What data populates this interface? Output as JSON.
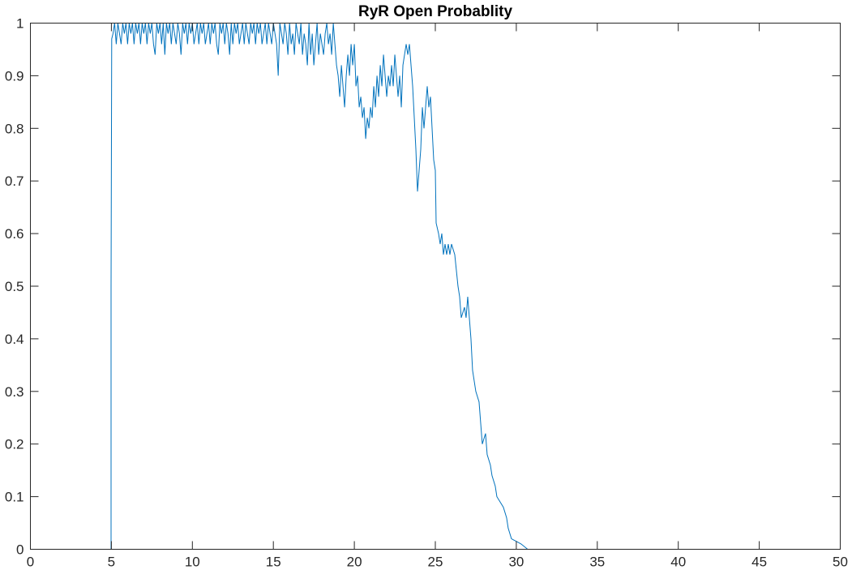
{
  "chart_data": {
    "type": "line",
    "title": "RyR Open Probablity",
    "xlabel": "",
    "ylabel": "",
    "xlim": [
      0,
      50
    ],
    "ylim": [
      0,
      1
    ],
    "xticks": [
      0,
      5,
      10,
      15,
      20,
      25,
      30,
      35,
      40,
      45,
      50
    ],
    "yticks": [
      0,
      0.1,
      0.2,
      0.3,
      0.4,
      0.5,
      0.6,
      0.7,
      0.8,
      0.9,
      1
    ],
    "xtick_labels": [
      "0",
      "5",
      "10",
      "15",
      "20",
      "25",
      "30",
      "35",
      "40",
      "45",
      "50"
    ],
    "ytick_labels": [
      "0",
      "0.1",
      "0.2",
      "0.3",
      "0.4",
      "0.5",
      "0.6",
      "0.7",
      "0.8",
      "0.9",
      "1"
    ],
    "grid": false,
    "box": true,
    "series": [
      {
        "color": "#0072BD",
        "points": [
          [
            0,
            0
          ],
          [
            4.98,
            0
          ],
          [
            4.98,
            0.5
          ],
          [
            5.02,
            0.97
          ],
          [
            5.1,
            0.98
          ],
          [
            5.2,
            1
          ],
          [
            5.3,
            0.96
          ],
          [
            5.4,
            1
          ],
          [
            5.5,
            0.98
          ],
          [
            5.6,
            0.96
          ],
          [
            5.7,
            1
          ],
          [
            5.8,
            0.98
          ],
          [
            5.9,
            1
          ],
          [
            6.0,
            0.96
          ],
          [
            6.1,
            1
          ],
          [
            6.2,
            0.98
          ],
          [
            6.3,
            1
          ],
          [
            6.4,
            0.96
          ],
          [
            6.5,
            1
          ],
          [
            6.6,
            0.98
          ],
          [
            6.7,
            1
          ],
          [
            6.8,
            0.96
          ],
          [
            6.9,
            1
          ],
          [
            7.0,
            0.98
          ],
          [
            7.1,
            1
          ],
          [
            7.2,
            0.96
          ],
          [
            7.3,
            1
          ],
          [
            7.4,
            0.98
          ],
          [
            7.5,
            1
          ],
          [
            7.6,
            0.96
          ],
          [
            7.7,
            0.94
          ],
          [
            7.8,
            1
          ],
          [
            7.9,
            0.98
          ],
          [
            8.0,
            1
          ],
          [
            8.1,
            0.96
          ],
          [
            8.2,
            1
          ],
          [
            8.3,
            0.94
          ],
          [
            8.4,
            1
          ],
          [
            8.5,
            0.98
          ],
          [
            8.6,
            1
          ],
          [
            8.7,
            0.96
          ],
          [
            8.8,
            1
          ],
          [
            8.9,
            0.98
          ],
          [
            9.0,
            0.96
          ],
          [
            9.1,
            1
          ],
          [
            9.2,
            0.98
          ],
          [
            9.3,
            0.94
          ],
          [
            9.4,
            1
          ],
          [
            9.5,
            0.98
          ],
          [
            9.6,
            1
          ],
          [
            9.7,
            0.96
          ],
          [
            9.8,
            1
          ],
          [
            9.9,
            0.98
          ],
          [
            10.0,
            1
          ],
          [
            10.1,
            0.96
          ],
          [
            10.2,
            0.98
          ],
          [
            10.3,
            1
          ],
          [
            10.4,
            0.96
          ],
          [
            10.5,
            1
          ],
          [
            10.6,
            0.98
          ],
          [
            10.7,
            1
          ],
          [
            10.8,
            0.96
          ],
          [
            10.9,
            0.98
          ],
          [
            11.0,
            1
          ],
          [
            11.1,
            0.96
          ],
          [
            11.2,
            1
          ],
          [
            11.3,
            0.98
          ],
          [
            11.4,
            1
          ],
          [
            11.5,
            0.96
          ],
          [
            11.6,
            0.94
          ],
          [
            11.7,
            1
          ],
          [
            11.8,
            0.98
          ],
          [
            11.9,
            1
          ],
          [
            12.0,
            0.96
          ],
          [
            12.1,
            1
          ],
          [
            12.2,
            0.98
          ],
          [
            12.3,
            0.94
          ],
          [
            12.4,
            1
          ],
          [
            12.5,
            0.96
          ],
          [
            12.6,
            1
          ],
          [
            12.7,
            0.98
          ],
          [
            12.8,
            1
          ],
          [
            12.9,
            0.96
          ],
          [
            13.0,
            0.98
          ],
          [
            13.1,
            1
          ],
          [
            13.2,
            0.96
          ],
          [
            13.3,
            1
          ],
          [
            13.4,
            0.98
          ],
          [
            13.5,
            0.96
          ],
          [
            13.6,
            1
          ],
          [
            13.7,
            0.98
          ],
          [
            13.8,
            1
          ],
          [
            13.9,
            0.96
          ],
          [
            14.0,
            1
          ],
          [
            14.1,
            0.98
          ],
          [
            14.2,
            1
          ],
          [
            14.3,
            0.96
          ],
          [
            14.4,
            0.98
          ],
          [
            14.5,
            1
          ],
          [
            14.6,
            0.96
          ],
          [
            14.7,
            1
          ],
          [
            14.8,
            0.98
          ],
          [
            14.9,
            0.96
          ],
          [
            15.0,
            1
          ],
          [
            15.1,
            0.98
          ],
          [
            15.2,
            0.96
          ],
          [
            15.3,
            0.9
          ],
          [
            15.4,
            1
          ],
          [
            15.5,
            0.98
          ],
          [
            15.6,
            0.96
          ],
          [
            15.7,
            1
          ],
          [
            15.8,
            0.98
          ],
          [
            15.9,
            0.94
          ],
          [
            16.0,
            1
          ],
          [
            16.1,
            0.96
          ],
          [
            16.2,
            0.98
          ],
          [
            16.3,
            0.94
          ],
          [
            16.4,
            1
          ],
          [
            16.5,
            0.98
          ],
          [
            16.6,
            0.96
          ],
          [
            16.7,
            1
          ],
          [
            16.8,
            0.94
          ],
          [
            16.9,
            0.98
          ],
          [
            17.0,
            0.96
          ],
          [
            17.1,
            0.92
          ],
          [
            17.2,
            1
          ],
          [
            17.3,
            0.94
          ],
          [
            17.4,
            0.98
          ],
          [
            17.5,
            0.92
          ],
          [
            17.6,
            0.96
          ],
          [
            17.7,
            1
          ],
          [
            17.8,
            0.94
          ],
          [
            17.9,
            0.98
          ],
          [
            18.0,
            0.96
          ],
          [
            18.1,
            0.94
          ],
          [
            18.2,
            0.98
          ],
          [
            18.3,
            1
          ],
          [
            18.4,
            0.96
          ],
          [
            18.5,
            0.98
          ],
          [
            18.6,
            0.94
          ],
          [
            18.7,
            1
          ],
          [
            18.8,
            0.96
          ],
          [
            18.9,
            0.92
          ],
          [
            19.0,
            0.9
          ],
          [
            19.1,
            0.86
          ],
          [
            19.2,
            0.92
          ],
          [
            19.3,
            0.88
          ],
          [
            19.4,
            0.84
          ],
          [
            19.5,
            0.9
          ],
          [
            19.6,
            0.94
          ],
          [
            19.7,
            0.9
          ],
          [
            19.8,
            0.96
          ],
          [
            19.9,
            0.92
          ],
          [
            20.0,
            0.96
          ],
          [
            20.1,
            0.88
          ],
          [
            20.2,
            0.9
          ],
          [
            20.3,
            0.84
          ],
          [
            20.4,
            0.86
          ],
          [
            20.5,
            0.82
          ],
          [
            20.6,
            0.84
          ],
          [
            20.7,
            0.78
          ],
          [
            20.8,
            0.82
          ],
          [
            20.9,
            0.8
          ],
          [
            21.0,
            0.84
          ],
          [
            21.1,
            0.82
          ],
          [
            21.2,
            0.88
          ],
          [
            21.3,
            0.84
          ],
          [
            21.4,
            0.9
          ],
          [
            21.5,
            0.86
          ],
          [
            21.6,
            0.92
          ],
          [
            21.7,
            0.88
          ],
          [
            21.8,
            0.94
          ],
          [
            21.9,
            0.9
          ],
          [
            22.0,
            0.86
          ],
          [
            22.1,
            0.9
          ],
          [
            22.2,
            0.88
          ],
          [
            22.3,
            0.92
          ],
          [
            22.4,
            0.88
          ],
          [
            22.5,
            0.94
          ],
          [
            22.6,
            0.9
          ],
          [
            22.7,
            0.86
          ],
          [
            22.8,
            0.9
          ],
          [
            22.9,
            0.84
          ],
          [
            23.0,
            0.92
          ],
          [
            23.1,
            0.94
          ],
          [
            23.2,
            0.96
          ],
          [
            23.3,
            0.94
          ],
          [
            23.4,
            0.96
          ],
          [
            23.5,
            0.92
          ],
          [
            23.6,
            0.88
          ],
          [
            23.7,
            0.82
          ],
          [
            23.8,
            0.76
          ],
          [
            23.9,
            0.68
          ],
          [
            24.0,
            0.72
          ],
          [
            24.1,
            0.76
          ],
          [
            24.2,
            0.84
          ],
          [
            24.3,
            0.8
          ],
          [
            24.4,
            0.84
          ],
          [
            24.5,
            0.88
          ],
          [
            24.6,
            0.84
          ],
          [
            24.7,
            0.86
          ],
          [
            24.8,
            0.8
          ],
          [
            24.9,
            0.74
          ],
          [
            25.0,
            0.72
          ],
          [
            25.05,
            0.62
          ],
          [
            25.2,
            0.6
          ],
          [
            25.3,
            0.58
          ],
          [
            25.4,
            0.6
          ],
          [
            25.5,
            0.56
          ],
          [
            25.6,
            0.58
          ],
          [
            25.7,
            0.56
          ],
          [
            25.8,
            0.58
          ],
          [
            25.9,
            0.56
          ],
          [
            26.0,
            0.58
          ],
          [
            26.2,
            0.56
          ],
          [
            26.4,
            0.5
          ],
          [
            26.5,
            0.48
          ],
          [
            26.6,
            0.44
          ],
          [
            26.8,
            0.46
          ],
          [
            26.9,
            0.44
          ],
          [
            27.0,
            0.48
          ],
          [
            27.1,
            0.44
          ],
          [
            27.2,
            0.4
          ],
          [
            27.3,
            0.34
          ],
          [
            27.4,
            0.32
          ],
          [
            27.5,
            0.3
          ],
          [
            27.7,
            0.28
          ],
          [
            27.8,
            0.24
          ],
          [
            27.9,
            0.2
          ],
          [
            28.1,
            0.22
          ],
          [
            28.2,
            0.18
          ],
          [
            28.4,
            0.16
          ],
          [
            28.5,
            0.14
          ],
          [
            28.7,
            0.12
          ],
          [
            28.8,
            0.1
          ],
          [
            29.2,
            0.08
          ],
          [
            29.4,
            0.06
          ],
          [
            29.5,
            0.04
          ],
          [
            29.7,
            0.02
          ],
          [
            30.3,
            0.01
          ],
          [
            30.7,
            0
          ],
          [
            50,
            0
          ]
        ]
      }
    ]
  }
}
